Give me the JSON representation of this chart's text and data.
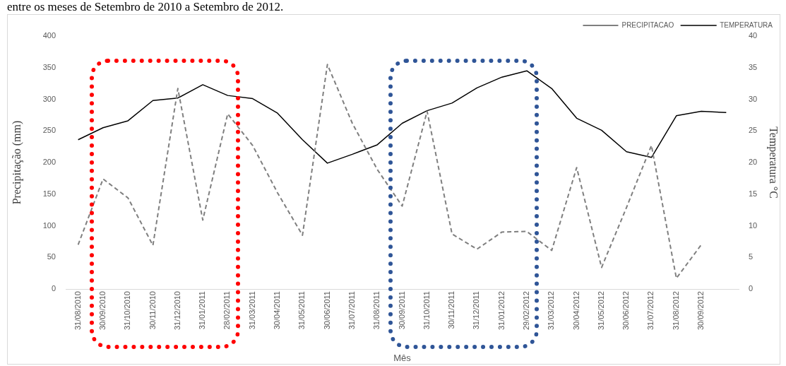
{
  "chart_data": {
    "type": "line",
    "title": "entre os meses de Setembro de 2010 a Setembro de 2012.",
    "xlabel": "Mês",
    "ylabel": "Precipitação (mm)",
    "y2label": "Temperatura °C",
    "categories": [
      "31/08/2010",
      "30/09/2010",
      "31/10/2010",
      "30/11/2010",
      "31/12/2010",
      "31/01/2011",
      "28/02/2011",
      "31/03/2011",
      "30/04/2011",
      "31/05/2011",
      "30/06/2011",
      "31/07/2011",
      "31/08/2011",
      "30/09/2011",
      "31/10/2011",
      "30/11/2011",
      "31/12/2011",
      "31/01/2012",
      "29/02/2012",
      "31/03/2012",
      "30/04/2012",
      "31/05/2012",
      "30/06/2012",
      "31/07/2012",
      "31/08/2012",
      "30/09/2012",
      null
    ],
    "series": [
      {
        "name": "PRECIPITACAO",
        "color": "#7f7f7f",
        "line_style": "dashed",
        "values": [
          70,
          174,
          144,
          69,
          317,
          109,
          277,
          227,
          152,
          85,
          355,
          262,
          189,
          131,
          281,
          87,
          63,
          90,
          91,
          61,
          192,
          34,
          129,
          227,
          17,
          70,
          null
        ]
      },
      {
        "name": "TEMPERATURA",
        "color": "#000000",
        "line_style": "solid",
        "axis": "y2",
        "values": [
          23.6,
          25.5,
          26.6,
          29.8,
          30.2,
          32.3,
          30.6,
          30.1,
          27.8,
          23.6,
          19.9,
          21.3,
          22.8,
          26.2,
          28.2,
          29.4,
          31.8,
          33.5,
          34.5,
          31.7,
          27.0,
          25.1,
          21.7,
          20.8,
          27.4,
          28.1,
          27.9
        ]
      }
    ],
    "ylim": [
      0,
      400
    ],
    "yticks": [
      0,
      50,
      100,
      150,
      200,
      250,
      300,
      350,
      400
    ],
    "y2lim": [
      0,
      40
    ],
    "y2ticks": [
      0,
      5,
      10,
      15,
      20,
      25,
      30,
      35,
      40
    ],
    "grid": false,
    "legend": "top right",
    "marker": "none"
  }
}
